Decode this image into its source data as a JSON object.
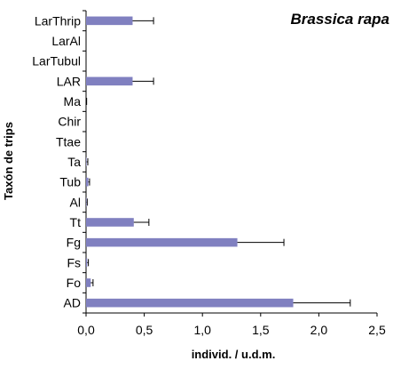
{
  "chart_data": {
    "type": "bar",
    "orientation": "horizontal",
    "title": "Brassica rapa",
    "xlabel": "individ. / u.d.m.",
    "ylabel": "Taxón de trips",
    "xlim": [
      0,
      2.5
    ],
    "xticks": [
      "0,0",
      "0,5",
      "1,0",
      "1,5",
      "2,0",
      "2,5"
    ],
    "grid": false,
    "categories": [
      "LarThrip",
      "LarAl",
      "LarTubul",
      "LAR",
      "Ma",
      "Chir",
      "Ttae",
      "Ta",
      "Tub",
      "Al",
      "Tt",
      "Fg",
      "Fs",
      "Fo",
      "AD"
    ],
    "values": [
      0.4,
      0,
      0,
      0.4,
      0,
      0,
      0,
      0.005,
      0.02,
      0.005,
      0.41,
      1.3,
      0.01,
      0.04,
      1.78
    ],
    "errors": [
      0.18,
      0,
      0,
      0.18,
      0.005,
      0,
      0,
      0.01,
      0.01,
      0.005,
      0.13,
      0.4,
      0.01,
      0.02,
      0.49
    ],
    "bar_color": "#8080c0",
    "error_bar_color": "#000000"
  }
}
